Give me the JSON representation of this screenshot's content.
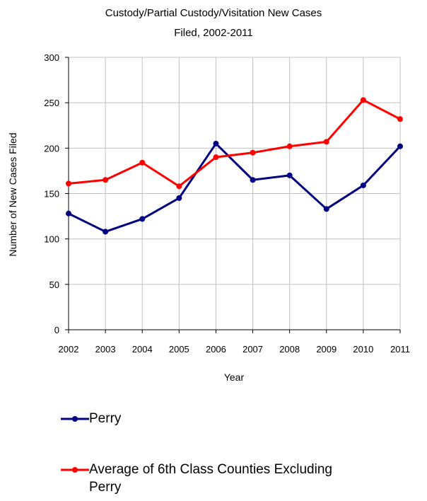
{
  "chart_data": {
    "type": "line",
    "title_lines": [
      "Custody/Partial Custody/Visitation New  Cases",
      "Filed, 2002-2011"
    ],
    "xlabel": "Year",
    "ylabel": "Number of New Cases Filed",
    "x": [
      "2002",
      "2003",
      "2004",
      "2005",
      "2006",
      "2007",
      "2008",
      "2009",
      "2010",
      "2011"
    ],
    "ylim": [
      0,
      300
    ],
    "yticks": [
      0,
      50,
      100,
      150,
      200,
      250,
      300
    ],
    "grid": true,
    "legend_position": "bottom",
    "series": [
      {
        "name": "Perry",
        "color": "#000080",
        "values": [
          128,
          108,
          122,
          145,
          205,
          165,
          170,
          133,
          159,
          202
        ]
      },
      {
        "name": "Average of 6th Class Counties Excluding Perry",
        "color": "#ff0000",
        "values": [
          161,
          165,
          184,
          158,
          190,
          195,
          202,
          207,
          253,
          232
        ]
      }
    ]
  },
  "legend": {
    "items": [
      {
        "label": "Perry"
      },
      {
        "label_line1": "Average of 6th Class Counties Excluding",
        "label_line2": "Perry"
      }
    ]
  }
}
